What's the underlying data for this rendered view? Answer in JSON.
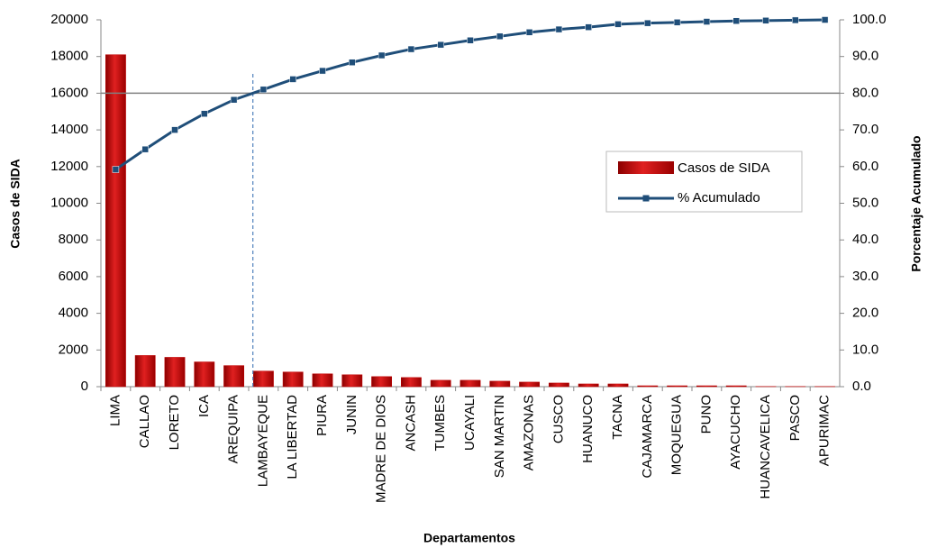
{
  "chart_data": {
    "type": "pareto",
    "y_label": "Casos de SIDA",
    "y2_label": "Porcentaje Acumulado",
    "x_label": "Departamentos",
    "categories": [
      "LIMA",
      "CALLAO",
      "LORETO",
      "ICA",
      "AREQUIPA",
      "LAMBAYEQUE",
      "LA LIBERTAD",
      "PIURA",
      "JUNIN",
      "MADRE DE DIOS",
      "ANCASH",
      "TUMBES",
      "UCAYALI",
      "SAN MARTIN",
      "AMAZONAS",
      "CUSCO",
      "HUANUCO",
      "TACNA",
      "CAJAMARCA",
      "MOQUEGUA",
      "PUNO",
      "AYACUCHO",
      "HUANCAVELICA",
      "PASCO",
      "APURIMAC"
    ],
    "series": [
      {
        "name": "Casos de SIDA",
        "color": "#c00000",
        "values": [
          18100,
          1700,
          1600,
          1350,
          1150,
          850,
          800,
          700,
          650,
          550,
          500,
          350,
          350,
          300,
          250,
          200,
          150,
          150,
          50,
          50,
          50,
          50,
          10,
          10,
          10
        ]
      },
      {
        "name": "% Acumulado",
        "color": "#1f4e79",
        "axis": "y2",
        "values": [
          59.2,
          64.7,
          70.0,
          74.4,
          78.2,
          81.0,
          83.8,
          86.1,
          88.4,
          90.3,
          92.0,
          93.2,
          94.4,
          95.5,
          96.6,
          97.4,
          98.0,
          98.8,
          99.1,
          99.3,
          99.5,
          99.7,
          99.8,
          99.9,
          100.0
        ]
      }
    ],
    "ylim": [
      0,
      20000
    ],
    "yticks": [
      0,
      2000,
      4000,
      6000,
      8000,
      10000,
      12000,
      14000,
      16000,
      18000,
      20000
    ],
    "y2lim": [
      0,
      100
    ],
    "y2ticks": [
      {
        "value": 0,
        "label": "0.0"
      },
      {
        "value": 10,
        "label": "10.0"
      },
      {
        "value": 20,
        "label": "20.0"
      },
      {
        "value": 30,
        "label": "30.0"
      },
      {
        "value": 40,
        "label": "40.0"
      },
      {
        "value": 50,
        "label": "50.0"
      },
      {
        "value": 60,
        "label": "60.0"
      },
      {
        "value": 70,
        "label": "70.0"
      },
      {
        "value": 80,
        "label": "80.0"
      },
      {
        "value": 90,
        "label": "90.0"
      },
      {
        "value": 100,
        "label": "100.0"
      }
    ],
    "reference_y2": 80,
    "legend": "right"
  }
}
